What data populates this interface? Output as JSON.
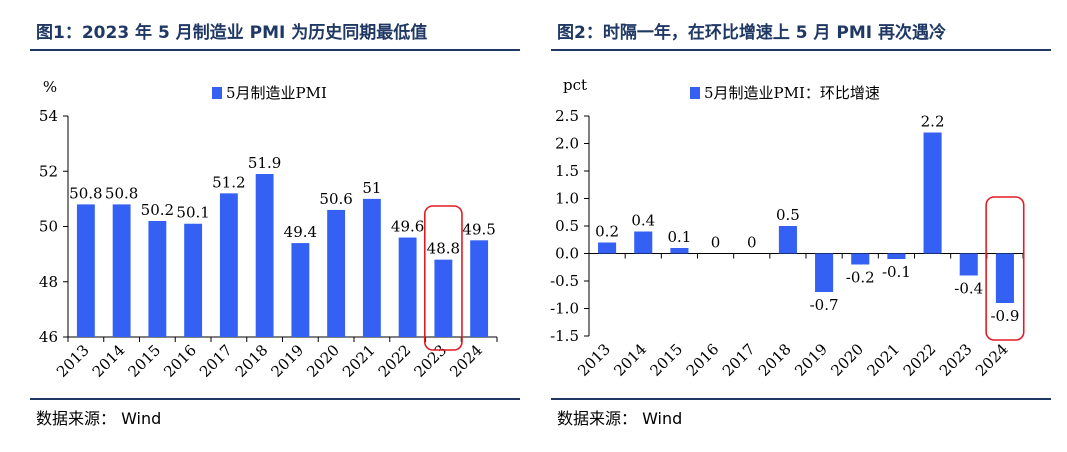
{
  "left": {
    "title": "图1：2023 年 5 月制造业 PMI 为历史同期最低值",
    "source": "数据来源： Wind",
    "chart_data": {
      "type": "bar",
      "ylabel": "%",
      "ylim": [
        46,
        54
      ],
      "yticks": [
        46,
        48,
        50,
        52,
        54
      ],
      "categories": [
        "2013",
        "2014",
        "2015",
        "2016",
        "2017",
        "2018",
        "2019",
        "2020",
        "2021",
        "2022",
        "2023",
        "2024"
      ],
      "series": [
        {
          "name": "5月制造业PMI",
          "values": [
            50.8,
            50.8,
            50.2,
            50.1,
            51.2,
            51.9,
            49.4,
            50.6,
            51,
            49.6,
            48.8,
            49.5
          ]
        }
      ],
      "data_labels": [
        "50.8",
        "50.8",
        "50.2",
        "50.1",
        "51.2",
        "51.9",
        "49.4",
        "50.6",
        "51",
        "49.6",
        "48.8",
        "49.5"
      ],
      "highlight_category": "2023",
      "legend": "top-center",
      "grid": false,
      "color": "#3461f4",
      "highlight_color": "#e31c23"
    }
  },
  "right": {
    "title": "图2：时隔一年，在环比增速上 5 月 PMI 再次遇冷",
    "source": "数据来源： Wind",
    "chart_data": {
      "type": "bar",
      "ylabel": "pct",
      "ylim": [
        -1.5,
        2.5
      ],
      "yticks": [
        -1.5,
        -1.0,
        -0.5,
        0.0,
        0.5,
        1.0,
        1.5,
        2.0,
        2.5
      ],
      "ytick_labels": [
        "-1.5",
        "-1.0",
        "-0.5",
        "0.0",
        "0.5",
        "1.0",
        "1.5",
        "2.0",
        "2.5"
      ],
      "categories": [
        "2013",
        "2014",
        "2015",
        "2016",
        "2017",
        "2018",
        "2019",
        "2020",
        "2021",
        "2022",
        "2023",
        "2024"
      ],
      "series": [
        {
          "name": "5月制造业PMI：环比增速",
          "values": [
            0.2,
            0.4,
            0.1,
            0,
            0,
            0.5,
            -0.7,
            -0.2,
            -0.1,
            2.2,
            -0.4,
            -0.9
          ]
        }
      ],
      "data_labels": [
        "0.2",
        "0.4",
        "0.1",
        "0",
        "0",
        "0.5",
        "-0.7",
        "-0.2",
        "-0.1",
        "2.2",
        "-0.4",
        "-0.9"
      ],
      "highlight_category": "2024",
      "legend": "top-center",
      "grid": false,
      "color": "#3461f4",
      "highlight_color": "#e31c23"
    }
  }
}
